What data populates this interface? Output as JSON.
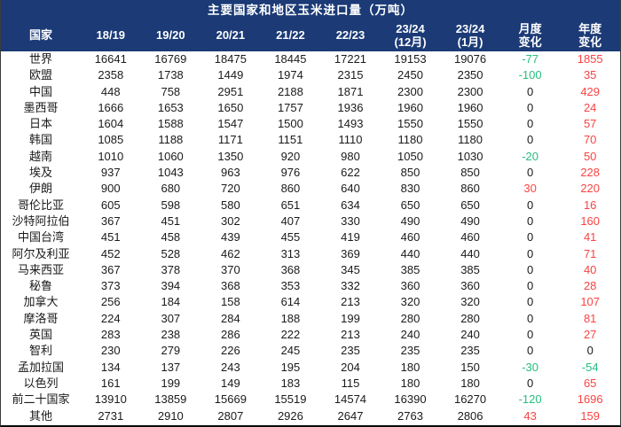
{
  "table": {
    "title": "主要国家和地区玉米进口量（万吨）",
    "columns": [
      "国家",
      "18/19",
      "19/20",
      "20/21",
      "21/22",
      "22/23",
      "23/24\n(12月)",
      "23/24\n(1月)",
      "月度\n变化",
      "年度\n变化"
    ],
    "rows": [
      {
        "name": "世界",
        "values": [
          "16641",
          "16769",
          "18475",
          "18445",
          "17221",
          "19153",
          "19076"
        ],
        "monthly_change": "-77",
        "yearly_change": "1855"
      },
      {
        "name": "欧盟",
        "values": [
          "2358",
          "1738",
          "1449",
          "1974",
          "2315",
          "2450",
          "2350"
        ],
        "monthly_change": "-100",
        "yearly_change": "35"
      },
      {
        "name": "中国",
        "values": [
          "448",
          "758",
          "2951",
          "2188",
          "1871",
          "2300",
          "2300"
        ],
        "monthly_change": "0",
        "yearly_change": "429"
      },
      {
        "name": "墨西哥",
        "values": [
          "1666",
          "1653",
          "1650",
          "1757",
          "1936",
          "1960",
          "1960"
        ],
        "monthly_change": "0",
        "yearly_change": "24"
      },
      {
        "name": "日本",
        "values": [
          "1604",
          "1588",
          "1547",
          "1500",
          "1493",
          "1550",
          "1550"
        ],
        "monthly_change": "0",
        "yearly_change": "57"
      },
      {
        "name": "韩国",
        "values": [
          "1085",
          "1188",
          "1171",
          "1151",
          "1110",
          "1180",
          "1180"
        ],
        "monthly_change": "0",
        "yearly_change": "70"
      },
      {
        "name": "越南",
        "values": [
          "1010",
          "1060",
          "1350",
          "920",
          "980",
          "1050",
          "1030"
        ],
        "monthly_change": "-20",
        "yearly_change": "50"
      },
      {
        "name": "埃及",
        "values": [
          "937",
          "1043",
          "963",
          "976",
          "622",
          "850",
          "850"
        ],
        "monthly_change": "0",
        "yearly_change": "228"
      },
      {
        "name": "伊朗",
        "values": [
          "900",
          "680",
          "720",
          "860",
          "640",
          "830",
          "860"
        ],
        "monthly_change": "30",
        "yearly_change": "220"
      },
      {
        "name": "哥伦比亚",
        "values": [
          "605",
          "598",
          "580",
          "651",
          "634",
          "650",
          "650"
        ],
        "monthly_change": "0",
        "yearly_change": "16"
      },
      {
        "name": "沙特阿拉伯",
        "values": [
          "367",
          "451",
          "302",
          "407",
          "330",
          "490",
          "490"
        ],
        "monthly_change": "0",
        "yearly_change": "160"
      },
      {
        "name": "中国台湾",
        "values": [
          "451",
          "458",
          "439",
          "455",
          "419",
          "460",
          "460"
        ],
        "monthly_change": "0",
        "yearly_change": "41"
      },
      {
        "name": "阿尔及利亚",
        "values": [
          "452",
          "528",
          "462",
          "313",
          "369",
          "440",
          "440"
        ],
        "monthly_change": "0",
        "yearly_change": "71"
      },
      {
        "name": "马来西亚",
        "values": [
          "367",
          "378",
          "370",
          "368",
          "345",
          "385",
          "385"
        ],
        "monthly_change": "0",
        "yearly_change": "40"
      },
      {
        "name": "秘鲁",
        "values": [
          "373",
          "394",
          "368",
          "353",
          "332",
          "360",
          "360"
        ],
        "monthly_change": "0",
        "yearly_change": "28"
      },
      {
        "name": "加拿大",
        "values": [
          "256",
          "184",
          "158",
          "614",
          "213",
          "320",
          "320"
        ],
        "monthly_change": "0",
        "yearly_change": "107"
      },
      {
        "name": "摩洛哥",
        "values": [
          "224",
          "307",
          "284",
          "188",
          "199",
          "280",
          "280"
        ],
        "monthly_change": "0",
        "yearly_change": "81"
      },
      {
        "name": "英国",
        "values": [
          "283",
          "238",
          "286",
          "222",
          "213",
          "240",
          "240"
        ],
        "monthly_change": "0",
        "yearly_change": "27"
      },
      {
        "name": "智利",
        "values": [
          "230",
          "279",
          "226",
          "245",
          "235",
          "235",
          "235"
        ],
        "monthly_change": "0",
        "yearly_change": "0"
      },
      {
        "name": "孟加拉国",
        "values": [
          "134",
          "137",
          "243",
          "195",
          "204",
          "180",
          "150"
        ],
        "monthly_change": "-30",
        "yearly_change": "-54"
      },
      {
        "name": "以色列",
        "values": [
          "161",
          "199",
          "149",
          "183",
          "115",
          "180",
          "180"
        ],
        "monthly_change": "0",
        "yearly_change": "65"
      },
      {
        "name": "前二十国家",
        "values": [
          "13910",
          "13859",
          "15669",
          "15519",
          "14574",
          "16390",
          "16270"
        ],
        "monthly_change": "-120",
        "yearly_change": "1696"
      },
      {
        "name": "其他",
        "values": [
          "2731",
          "2910",
          "2807",
          "2926",
          "2647",
          "2763",
          "2806"
        ],
        "monthly_change": "43",
        "yearly_change": "159"
      }
    ]
  },
  "colors": {
    "header_bg": "#1b3a76",
    "header_text": "#ffffff",
    "positive_change": "#f94343",
    "negative_change": "#26bd7e",
    "zero_change": "#1a1a1a"
  }
}
